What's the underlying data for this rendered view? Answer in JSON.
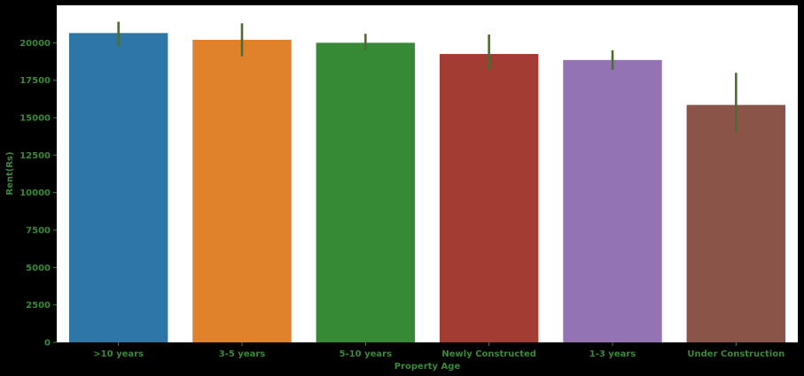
{
  "chart_data": {
    "type": "bar",
    "xlabel": "Property Age",
    "ylabel": "Rent(Rs)",
    "categories": [
      ">10 years",
      "3-5 years",
      "5-10 years",
      "Newly Constructed",
      "1-3 years",
      "Under Construction"
    ],
    "values": [
      20650,
      20200,
      20000,
      19250,
      18850,
      15850
    ],
    "error_low": [
      19800,
      19100,
      19500,
      18200,
      18200,
      14000
    ],
    "error_high": [
      21400,
      21300,
      20600,
      20550,
      19500,
      18000
    ],
    "colors": [
      "#2e75a8",
      "#e0812c",
      "#378a35",
      "#a33d33",
      "#9473b4",
      "#8a5548"
    ],
    "error_color": "#4e6b35",
    "ylim": [
      0,
      22500
    ],
    "yticks": [
      0,
      2500,
      5000,
      7500,
      10000,
      12500,
      15000,
      17500,
      20000
    ],
    "grid": false,
    "text_color": "#3a8a3a",
    "background": "#ffffff"
  }
}
